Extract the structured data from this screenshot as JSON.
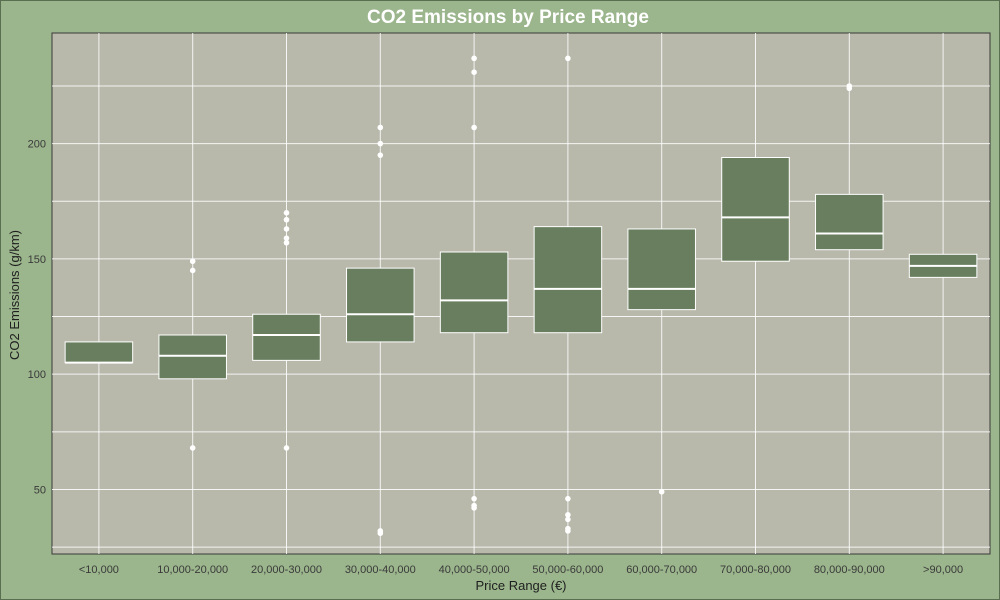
{
  "chart_data": {
    "type": "box",
    "title": "CO2 Emissions by Price Range",
    "xlabel": "Price Range (€)",
    "ylabel": "CO2 Emissions (g/km)",
    "ylim": [
      22,
      248
    ],
    "yticks": [
      50,
      100,
      150,
      200
    ],
    "grid": true,
    "legend": "none",
    "colors": {
      "background": "#9bb58c",
      "panel": "#b8b8ab",
      "box": "#687e5e",
      "box_edge": "#ffffff",
      "median": "#ffffff",
      "grid": "#ffffff",
      "outlier": "#ffffff"
    },
    "categories": [
      "<10,000",
      "10,000-20,000",
      "20,000-30,000",
      "30,000-40,000",
      "40,000-50,000",
      "50,000-60,000",
      "60,000-70,000",
      "70,000-80,000",
      "80,000-90,000",
      ">90,000"
    ],
    "boxes": [
      {
        "q1": 105,
        "median": 105,
        "q3": 114,
        "outliers": []
      },
      {
        "q1": 98,
        "median": 108,
        "q3": 117,
        "outliers": [
          149,
          145,
          68
        ]
      },
      {
        "q1": 106,
        "median": 117,
        "q3": 126,
        "outliers": [
          170,
          167,
          163,
          159,
          157,
          68
        ]
      },
      {
        "q1": 114,
        "median": 126,
        "q3": 146,
        "outliers": [
          207,
          200,
          195,
          32,
          31
        ]
      },
      {
        "q1": 118,
        "median": 132,
        "q3": 153,
        "outliers": [
          237,
          231,
          207,
          46,
          43,
          42
        ]
      },
      {
        "q1": 118,
        "median": 137,
        "q3": 164,
        "outliers": [
          237,
          46,
          39,
          37,
          33,
          32
        ]
      },
      {
        "q1": 128,
        "median": 137,
        "q3": 163,
        "outliers": [
          49
        ]
      },
      {
        "q1": 149,
        "median": 168,
        "q3": 194,
        "outliers": []
      },
      {
        "q1": 154,
        "median": 161,
        "q3": 178,
        "outliers": [
          225,
          224
        ]
      },
      {
        "q1": 142,
        "median": 147,
        "q3": 152,
        "outliers": []
      }
    ]
  }
}
